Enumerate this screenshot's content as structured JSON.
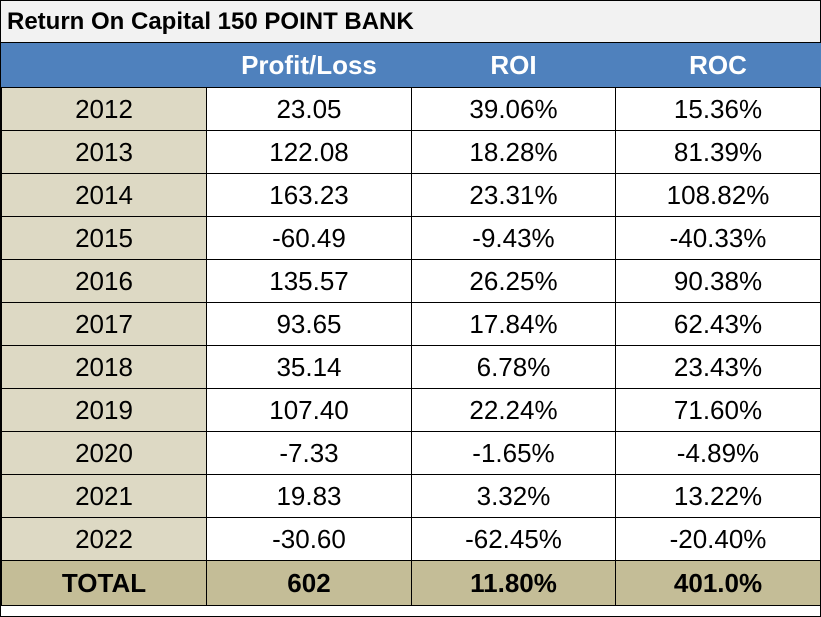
{
  "title": "Return On Capital 150 POINT BANK",
  "headers": [
    "",
    "Profit/Loss",
    "ROI",
    "ROC"
  ],
  "rows": [
    {
      "year": "2012",
      "profit": "23.05",
      "roi": "39.06%",
      "roc": "15.36%"
    },
    {
      "year": "2013",
      "profit": "122.08",
      "roi": "18.28%",
      "roc": "81.39%"
    },
    {
      "year": "2014",
      "profit": "163.23",
      "roi": "23.31%",
      "roc": "108.82%"
    },
    {
      "year": "2015",
      "profit": "-60.49",
      "roi": "-9.43%",
      "roc": "-40.33%"
    },
    {
      "year": "2016",
      "profit": "135.57",
      "roi": "26.25%",
      "roc": "90.38%"
    },
    {
      "year": "2017",
      "profit": "93.65",
      "roi": "17.84%",
      "roc": "62.43%"
    },
    {
      "year": "2018",
      "profit": "35.14",
      "roi": "6.78%",
      "roc": "23.43%"
    },
    {
      "year": "2019",
      "profit": "107.40",
      "roi": "22.24%",
      "roc": "71.60%"
    },
    {
      "year": "2020",
      "profit": "-7.33",
      "roi": "-1.65%",
      "roc": "-4.89%"
    },
    {
      "year": "2021",
      "profit": "19.83",
      "roi": "3.32%",
      "roc": "13.22%"
    },
    {
      "year": "2022",
      "profit": "-30.60",
      "roi": "-62.45%",
      "roc": "-20.40%"
    }
  ],
  "total": {
    "label": "TOTAL",
    "profit": "602",
    "roi": "11.80%",
    "roc": "401.0%"
  },
  "colors": {
    "header_bg": "#4f81bd",
    "year_bg": "#ddd9c4",
    "total_bg": "#c4bd97",
    "title_bg": "#f2f2f2"
  }
}
